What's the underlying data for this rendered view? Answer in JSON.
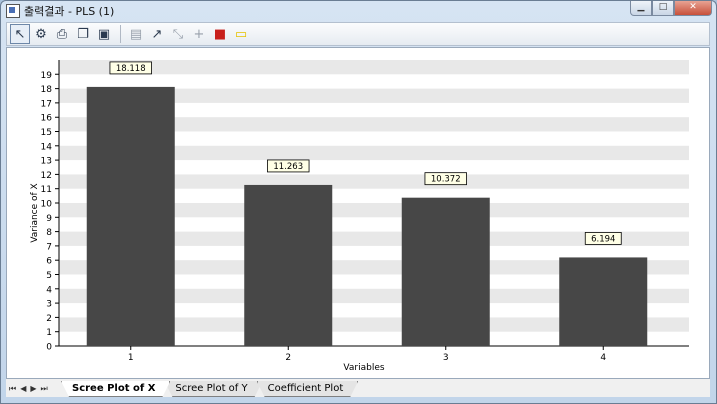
{
  "window": {
    "title": "출력결과 - PLS (1)",
    "buttons": {
      "minimize": "▁",
      "maximize": "□",
      "close": "✕"
    }
  },
  "toolbar": {
    "tools": [
      {
        "name": "pointer-tool-icon",
        "glyph": "↖",
        "active": true
      },
      {
        "name": "properties-icon",
        "glyph": "⚙"
      },
      {
        "name": "print-icon",
        "glyph": "⎙"
      },
      {
        "name": "copy-icon",
        "glyph": "❐"
      },
      {
        "name": "save-icon",
        "glyph": "▣"
      },
      {
        "name": "page-icon",
        "glyph": "▤",
        "dim": true
      },
      {
        "name": "draw-line-icon",
        "glyph": "↗"
      },
      {
        "name": "select-region-icon",
        "glyph": "⤡",
        "dim": true
      },
      {
        "name": "crosshair-icon",
        "glyph": "+",
        "dim": true
      },
      {
        "name": "color-fill-icon",
        "glyph": "■",
        "color": "#c8201c"
      },
      {
        "name": "label-icon",
        "glyph": "▭",
        "color": "#e6c200"
      }
    ]
  },
  "chart_data": {
    "type": "bar",
    "categories": [
      "1",
      "2",
      "3",
      "4"
    ],
    "values": [
      18.118,
      11.263,
      10.372,
      6.194
    ],
    "data_labels": [
      "18.118",
      "11.263",
      "10.372",
      "6.194"
    ],
    "title": "",
    "xlabel": "Variables",
    "ylabel": "Variance of X",
    "ylim": [
      0,
      20
    ],
    "yticks": [
      0,
      1,
      2,
      3,
      4,
      5,
      6,
      7,
      8,
      9,
      10,
      11,
      12,
      13,
      14,
      15,
      16,
      17,
      18,
      19
    ],
    "grid": "alternating horizontal bands",
    "bar_color": "#474747",
    "band_color": "#e8e8e8"
  },
  "tabs": {
    "nav": [
      "⏮",
      "◀",
      "▶",
      "⏭"
    ],
    "items": [
      {
        "label": "Scree Plot of X",
        "active": true
      },
      {
        "label": "Scree Plot of Y",
        "active": false
      },
      {
        "label": "Coefficient Plot",
        "active": false
      }
    ]
  }
}
